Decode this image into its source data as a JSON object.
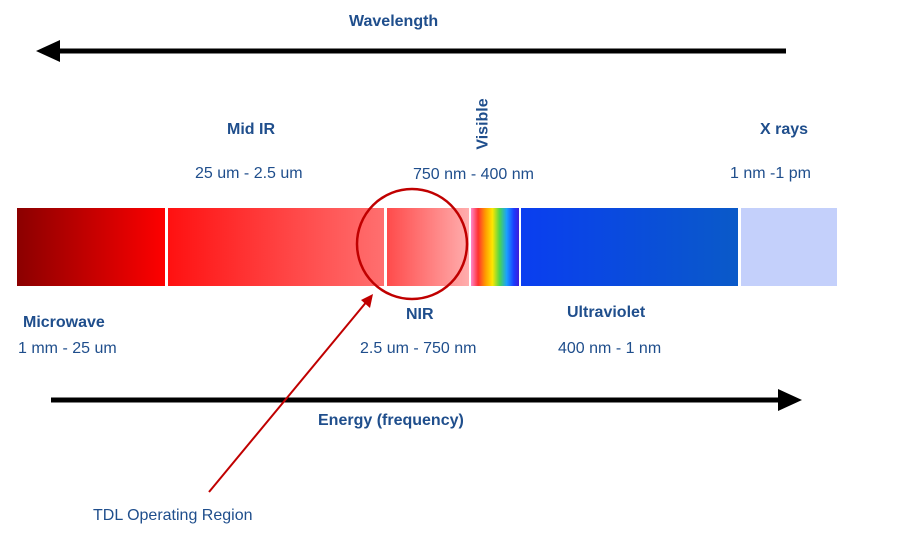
{
  "wavelength_label": "Wavelength",
  "energy_label": "Energy (frequency)",
  "bands": {
    "microwave": {
      "name": "Microwave",
      "range": "1 mm - 25 um"
    },
    "mid_ir": {
      "name": "Mid IR",
      "range": "25 um  - 2.5 um"
    },
    "nir": {
      "name": "NIR",
      "range": "2.5 um - 750 nm"
    },
    "visible": {
      "name": "Visible",
      "range": "750 nm - 400 nm"
    },
    "ultraviolet": {
      "name": "Ultraviolet",
      "range": "400 nm - 1 nm"
    },
    "x_rays": {
      "name": "X rays",
      "range": "1 nm -1 pm"
    }
  },
  "callout": {
    "text": "TDL Operating Region"
  },
  "colors": {
    "text": "#1f4e8c",
    "arrow": "#000000",
    "callout_line": "#c00000",
    "microwave_start": "#8b0000",
    "microwave_end": "#ff0000",
    "mid_ir_start": "#ff1010",
    "mid_ir_end": "#ff7070",
    "nir_start": "#ff4a4a",
    "nir_end": "#ffb0b0",
    "ultraviolet_start": "#0a3ef0",
    "ultraviolet_end": "#0a5ac8",
    "x_rays": "#c4d0fb"
  }
}
